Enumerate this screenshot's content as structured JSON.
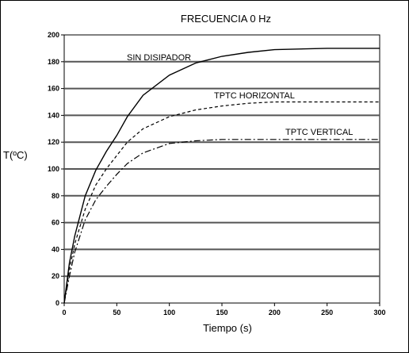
{
  "chart_data": {
    "type": "line",
    "title": "FRECUENCIA   0 Hz",
    "xlabel": "Tiempo (s)",
    "ylabel": "T(ºC)",
    "xlim": [
      0,
      300
    ],
    "ylim": [
      0,
      200
    ],
    "x_ticks": [
      "0",
      "50",
      "100",
      "150",
      "200",
      "250",
      "300"
    ],
    "y_ticks": [
      "0",
      "20",
      "40",
      "60",
      "80",
      "100",
      "120",
      "140",
      "160",
      "180",
      "200"
    ],
    "grid": "horizontal",
    "series": [
      {
        "name": "SIN DISIPADOR",
        "style": "solid",
        "x": [
          0,
          5,
          10,
          20,
          30,
          40,
          50,
          60,
          75,
          100,
          125,
          150,
          175,
          200,
          250,
          300
        ],
        "y": [
          0,
          30,
          50,
          80,
          99,
          113,
          125,
          139,
          155,
          170,
          179,
          184,
          187,
          189,
          190,
          190
        ]
      },
      {
        "name": "TPTC HORIZONTAL",
        "style": "dashed",
        "x": [
          0,
          5,
          10,
          20,
          30,
          40,
          50,
          60,
          75,
          100,
          125,
          150,
          175,
          200,
          250,
          300
        ],
        "y": [
          0,
          25,
          44,
          70,
          88,
          100,
          110,
          120,
          130,
          139,
          144,
          147,
          149,
          150,
          150,
          150
        ]
      },
      {
        "name": "TPTC VERTICAL",
        "style": "dashdot",
        "x": [
          0,
          5,
          10,
          20,
          30,
          40,
          50,
          60,
          75,
          100,
          125,
          150,
          175,
          200,
          250,
          300
        ],
        "y": [
          0,
          20,
          38,
          62,
          77,
          87,
          96,
          104,
          112,
          119,
          121,
          122,
          122,
          122,
          122,
          122
        ]
      }
    ]
  }
}
